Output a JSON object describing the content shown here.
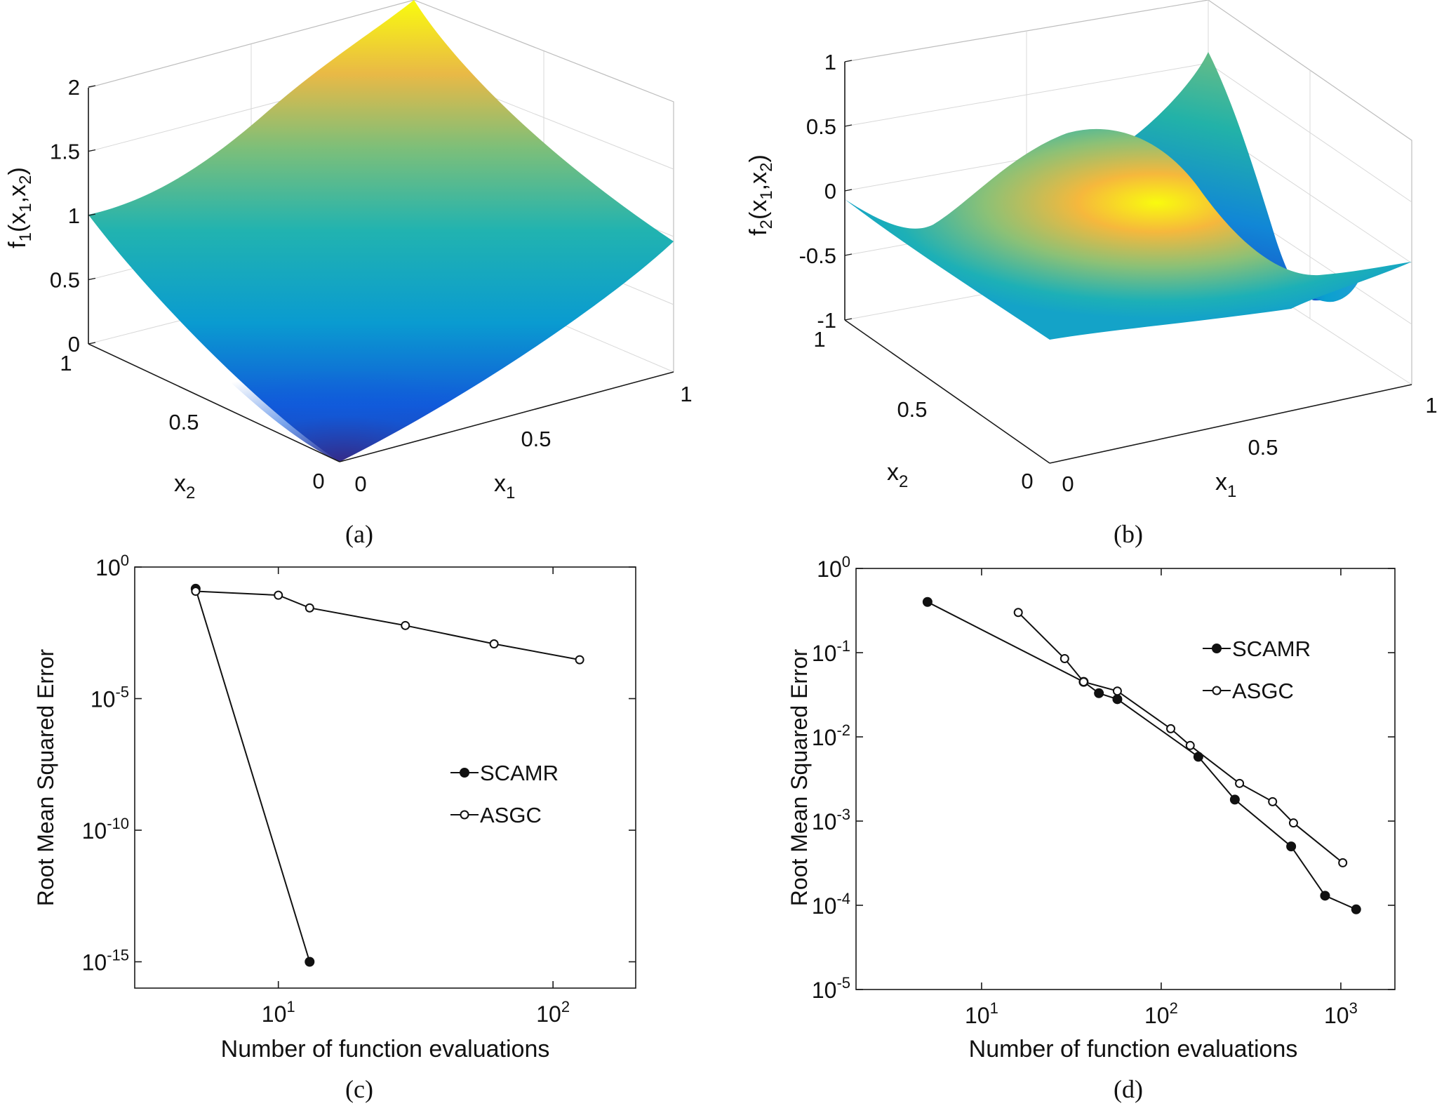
{
  "chart_data": [
    {
      "type": "surface",
      "panel_label": "(a)",
      "zlabel": "f1(x1,x2)",
      "zlabel_main": "f",
      "zlabel_sub": "1",
      "zlabel_args": "(x",
      "xlabel": "x1",
      "ylabel": "x2",
      "z_ticks": [
        "0",
        "0.5",
        "1",
        "1.5",
        "2"
      ],
      "x_ticks": [
        "0",
        "0.5",
        "1"
      ],
      "y_ticks": [
        "0",
        "0.5",
        "1"
      ],
      "zlim": [
        0,
        2
      ],
      "xlim": [
        0,
        1
      ],
      "ylim": [
        0,
        1
      ],
      "colormap": [
        "#352a87",
        "#0f5cdd",
        "#1481d6",
        "#06a4ca",
        "#2eb7a4",
        "#87bf77",
        "#d1bb59",
        "#fec832",
        "#f9fb0e"
      ]
    },
    {
      "type": "surface",
      "panel_label": "(b)",
      "zlabel": "f2(x1,x2)",
      "zlabel_sub": "2",
      "xlabel": "x1",
      "ylabel": "x2",
      "z_ticks": [
        "-1",
        "-0.5",
        "0",
        "0.5",
        "1"
      ],
      "x_ticks": [
        "0",
        "0.5",
        "1"
      ],
      "y_ticks": [
        "0",
        "0.5",
        "1"
      ],
      "zlim": [
        -1,
        1
      ],
      "xlim": [
        0,
        1
      ],
      "ylim": [
        0,
        1
      ]
    },
    {
      "type": "line",
      "panel_label": "(c)",
      "xlabel": "Number of function evaluations",
      "ylabel": "Root Mean Squared Error",
      "xscale": "log",
      "yscale": "log",
      "xlim": [
        3,
        200
      ],
      "ylim": [
        1e-16,
        1
      ],
      "x_ticks": [
        {
          "base": "10",
          "exp": "1",
          "value": 10
        },
        {
          "base": "10",
          "exp": "2",
          "value": 100
        }
      ],
      "y_ticks": [
        {
          "base": "10",
          "exp": "0",
          "value": 1
        },
        {
          "base": "10",
          "exp": "-5",
          "value": 1e-05
        },
        {
          "base": "10",
          "exp": "-10",
          "value": 1e-10
        },
        {
          "base": "10",
          "exp": "-15",
          "value": 1e-15
        }
      ],
      "legend_position": "center-right",
      "series": [
        {
          "name": "SCAMR",
          "marker": "filled-circle",
          "x": [
            5,
            13
          ],
          "y": [
            0.15,
            1e-15
          ]
        },
        {
          "name": "ASGC",
          "marker": "open-circle",
          "x": [
            5,
            10,
            13,
            29,
            61,
            125
          ],
          "y": [
            0.12,
            0.085,
            0.028,
            0.006,
            0.0012,
            0.0003
          ]
        }
      ]
    },
    {
      "type": "line",
      "panel_label": "(d)",
      "xlabel": "Number of function evaluations",
      "ylabel": "Root Mean Squared Error",
      "xscale": "log",
      "yscale": "log",
      "xlim": [
        2,
        2000
      ],
      "ylim": [
        1e-05,
        1
      ],
      "x_ticks": [
        {
          "base": "10",
          "exp": "1",
          "value": 10
        },
        {
          "base": "10",
          "exp": "2",
          "value": 100
        },
        {
          "base": "10",
          "exp": "3",
          "value": 1000
        }
      ],
      "y_ticks": [
        {
          "base": "10",
          "exp": "0",
          "value": 1
        },
        {
          "base": "10",
          "exp": "-1",
          "value": 0.1
        },
        {
          "base": "10",
          "exp": "-2",
          "value": 0.01
        },
        {
          "base": "10",
          "exp": "-3",
          "value": 0.001
        },
        {
          "base": "10",
          "exp": "-4",
          "value": 0.0001
        },
        {
          "base": "10",
          "exp": "-5",
          "value": 1e-05
        }
      ],
      "legend_position": "top-right",
      "series": [
        {
          "name": "SCAMR",
          "marker": "filled-circle",
          "x": [
            5,
            37,
            45,
            57,
            161,
            257,
            529,
            817,
            1217
          ],
          "y": [
            0.4,
            0.045,
            0.033,
            0.028,
            0.0058,
            0.0018,
            0.0005,
            0.00013,
            8.95e-05
          ]
        },
        {
          "name": "ASGC",
          "marker": "open-circle",
          "x": [
            16,
            29,
            37,
            57,
            113,
            145,
            273,
            417,
            545,
            1025
          ],
          "y": [
            0.3,
            0.085,
            0.045,
            0.035,
            0.0125,
            0.0079,
            0.0028,
            0.0017,
            0.00095,
            0.00032
          ]
        }
      ]
    }
  ]
}
